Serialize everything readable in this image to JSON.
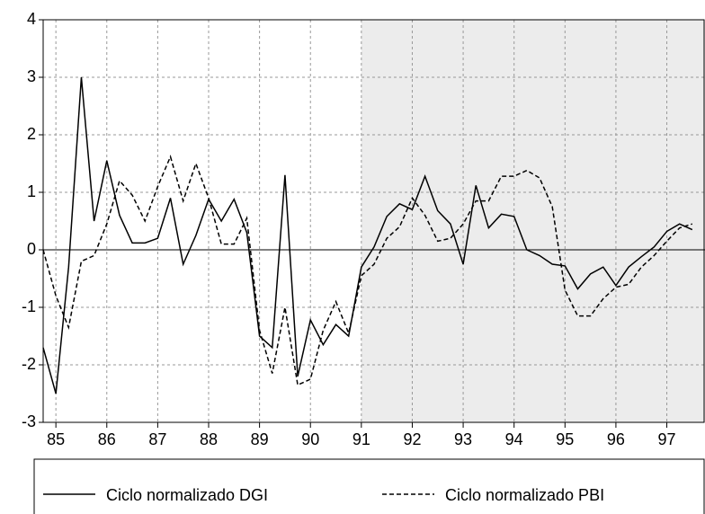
{
  "chart_data": {
    "type": "line",
    "x": [
      1985,
      1985.25,
      1985.5,
      1985.75,
      1986,
      1986.25,
      1986.5,
      1986.75,
      1987,
      1987.25,
      1987.5,
      1987.75,
      1988,
      1988.25,
      1988.5,
      1988.75,
      1989,
      1989.25,
      1989.5,
      1989.75,
      1990,
      1990.25,
      1990.5,
      1990.75,
      1991,
      1991.25,
      1991.5,
      1991.75,
      1992,
      1992.25,
      1992.5,
      1992.75,
      1993,
      1993.25,
      1993.5,
      1993.75,
      1994,
      1994.25,
      1994.5,
      1994.75,
      1995,
      1995.25,
      1995.5,
      1995.75,
      1996,
      1996.25,
      1996.5,
      1996.75,
      1997,
      1997.25,
      1997.5,
      1997.75
    ],
    "series": [
      {
        "name": "Ciclo normalizado DGI",
        "color": "#000000",
        "style": "solid",
        "values": [
          -1.7,
          -2.5,
          -0.3,
          3.0,
          0.5,
          1.55,
          0.6,
          0.12,
          0.12,
          0.2,
          0.9,
          -0.25,
          0.25,
          0.88,
          0.5,
          0.88,
          0.3,
          -1.5,
          -1.7,
          1.3,
          -2.2,
          -1.22,
          -1.65,
          -1.3,
          -1.5,
          -0.3,
          0.05,
          0.58,
          0.8,
          0.7,
          1.28,
          0.68,
          0.45,
          -0.25,
          1.12,
          0.38,
          0.62,
          0.58,
          0.0,
          -0.1,
          -0.25,
          -0.28,
          -0.68,
          -0.42,
          -0.3,
          -0.62,
          -0.3,
          -0.12,
          0.05,
          0.32,
          0.45,
          0.35
        ]
      },
      {
        "name": "Ciclo normalizado PBI",
        "color": "#000000",
        "style": "dashed",
        "values": [
          0.0,
          -0.8,
          -1.35,
          -0.2,
          -0.1,
          0.45,
          1.2,
          0.95,
          0.5,
          1.1,
          1.62,
          0.85,
          1.5,
          0.9,
          0.1,
          0.1,
          0.55,
          -1.4,
          -2.15,
          -1.0,
          -2.35,
          -2.25,
          -1.4,
          -0.9,
          -1.45,
          -0.45,
          -0.25,
          0.2,
          0.4,
          0.9,
          0.6,
          0.15,
          0.2,
          0.45,
          0.85,
          0.85,
          1.28,
          1.28,
          1.38,
          1.25,
          0.75,
          -0.7,
          -1.15,
          -1.15,
          -0.85,
          -0.65,
          -0.6,
          -0.3,
          -0.1,
          0.15,
          0.38,
          0.45
        ]
      }
    ],
    "xlim": [
      1985,
      1998
    ],
    "xticks": [
      {
        "value": 1985.25,
        "label": "85"
      },
      {
        "value": 1986.25,
        "label": "86"
      },
      {
        "value": 1987.25,
        "label": "87"
      },
      {
        "value": 1988.25,
        "label": "88"
      },
      {
        "value": 1989.25,
        "label": "89"
      },
      {
        "value": 1990.25,
        "label": "90"
      },
      {
        "value": 1991.25,
        "label": "91"
      },
      {
        "value": 1992.25,
        "label": "92"
      },
      {
        "value": 1993.25,
        "label": "93"
      },
      {
        "value": 1994.25,
        "label": "94"
      },
      {
        "value": 1995.25,
        "label": "95"
      },
      {
        "value": 1996.25,
        "label": "96"
      },
      {
        "value": 1997.25,
        "label": "97"
      }
    ],
    "ylim": [
      -3,
      4
    ],
    "yticks": [
      -3,
      -2,
      -1,
      0,
      1,
      2,
      3,
      4
    ],
    "shaded_region": [
      1991.25,
      1998
    ],
    "grid": true,
    "legend": "bottom"
  }
}
